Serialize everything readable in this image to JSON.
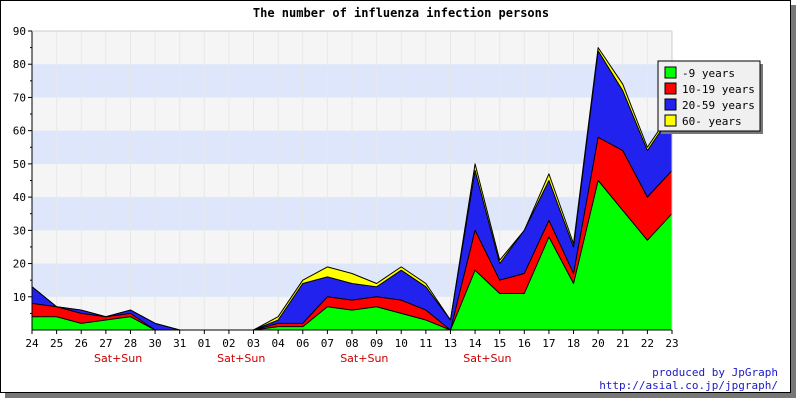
{
  "chart_data": {
    "type": "area",
    "stacked": true,
    "title": "The number of influenza infection persons",
    "x": [
      "24",
      "25",
      "26",
      "27",
      "28",
      "30",
      "31",
      "01",
      "02",
      "03",
      "04",
      "06",
      "07",
      "08",
      "09",
      "10",
      "11",
      "13",
      "14",
      "15",
      "16",
      "17",
      "18",
      "20",
      "21",
      "22",
      "23"
    ],
    "weekend_labels": [
      {
        "after": "27",
        "label": "Sat+Sun"
      },
      {
        "after": "02",
        "label": "Sat+Sun"
      },
      {
        "after": "08",
        "label": "Sat+Sun"
      },
      {
        "after": "14",
        "label": "Sat+Sun"
      }
    ],
    "ylim": [
      0,
      90
    ],
    "yticks": [
      10,
      20,
      30,
      40,
      50,
      60,
      70,
      80,
      90
    ],
    "grid": "horizontal bands",
    "legend_position": "top-right",
    "series": [
      {
        "name": "-9 years",
        "color": "#00ff00",
        "values": [
          4,
          4,
          2,
          3,
          4,
          0,
          0,
          0,
          0,
          0,
          1,
          1,
          7,
          6,
          7,
          5,
          3,
          0,
          18,
          11,
          11,
          28,
          14,
          45,
          36,
          27,
          35
        ]
      },
      {
        "name": "10-19 years",
        "color": "#ff0000",
        "values": [
          4,
          3,
          3,
          1,
          1,
          0,
          0,
          0,
          0,
          0,
          1,
          1,
          3,
          3,
          3,
          4,
          3,
          0,
          12,
          4,
          6,
          5,
          3,
          13,
          18,
          13,
          13
        ]
      },
      {
        "name": "20-59 years",
        "color": "#2222ee",
        "values": [
          5,
          0,
          1,
          0,
          1,
          2,
          0,
          0,
          0,
          0,
          1,
          12,
          6,
          5,
          3,
          9,
          7,
          3,
          18,
          5,
          13,
          12,
          8,
          26,
          18,
          14,
          17
        ]
      },
      {
        "name": "60- years",
        "color": "#ffff00",
        "values": [
          0,
          0,
          0,
          0,
          0,
          0,
          0,
          0,
          0,
          0,
          1,
          1,
          3,
          3,
          1,
          1,
          1,
          0,
          2,
          1,
          0,
          2,
          1,
          1,
          2,
          1,
          1
        ]
      }
    ]
  },
  "credits": {
    "line1": "produced by JpGraph",
    "line2": "http://asial.co.jp/jpgraph/"
  }
}
